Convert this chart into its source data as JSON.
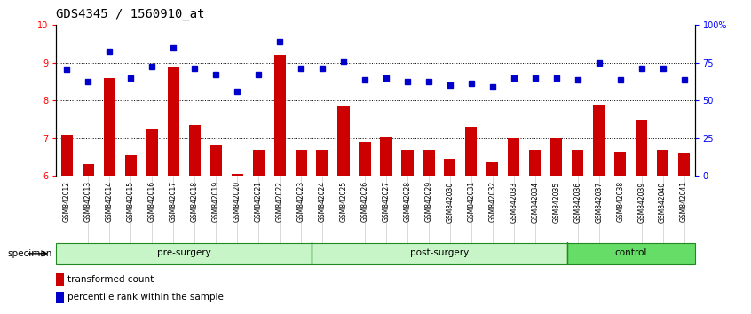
{
  "title": "GDS4345 / 1560910_at",
  "samples": [
    "GSM842012",
    "GSM842013",
    "GSM842014",
    "GSM842015",
    "GSM842016",
    "GSM842017",
    "GSM842018",
    "GSM842019",
    "GSM842020",
    "GSM842021",
    "GSM842022",
    "GSM842023",
    "GSM842024",
    "GSM842025",
    "GSM842026",
    "GSM842027",
    "GSM842028",
    "GSM842029",
    "GSM842030",
    "GSM842031",
    "GSM842032",
    "GSM842033",
    "GSM842034",
    "GSM842035",
    "GSM842036",
    "GSM842037",
    "GSM842038",
    "GSM842039",
    "GSM842040",
    "GSM842041"
  ],
  "bar_values": [
    7.1,
    6.3,
    8.6,
    6.55,
    7.25,
    8.9,
    7.35,
    6.8,
    6.05,
    6.7,
    9.2,
    6.7,
    6.7,
    7.85,
    6.9,
    7.05,
    6.7,
    6.7,
    6.45,
    7.3,
    6.35,
    7.0,
    6.7,
    7.0,
    6.7,
    7.9,
    6.65,
    7.5,
    6.7,
    6.6
  ],
  "percentile_values": [
    8.82,
    8.5,
    9.3,
    8.6,
    8.9,
    9.4,
    8.85,
    8.7,
    8.25,
    8.7,
    9.55,
    8.85,
    8.85,
    9.05,
    8.55,
    8.6,
    8.5,
    8.5,
    8.4,
    8.45,
    8.35,
    8.6,
    8.6,
    8.6,
    8.55,
    9.0,
    8.55,
    8.85,
    8.85,
    8.55
  ],
  "groups": [
    {
      "label": "pre-surgery",
      "start": 0,
      "end": 12,
      "color": "#c8f5c8"
    },
    {
      "label": "post-surgery",
      "start": 12,
      "end": 24,
      "color": "#c8f5c8"
    },
    {
      "label": "control",
      "start": 24,
      "end": 30,
      "color": "#66dd66"
    }
  ],
  "bar_color": "#cc0000",
  "dot_color": "#0000cc",
  "ylim_left": [
    6,
    10
  ],
  "ylim_right": [
    0,
    100
  ],
  "yticks_left": [
    6,
    7,
    8,
    9,
    10
  ],
  "yticks_right": [
    0,
    25,
    50,
    75,
    100
  ],
  "ytick_labels_right": [
    "0",
    "25",
    "50",
    "75",
    "100%"
  ],
  "gridlines": [
    7.0,
    8.0,
    9.0
  ],
  "bar_width": 0.55,
  "title_fontsize": 10,
  "tick_fontsize": 7,
  "group_separators": [
    11.5,
    23.5
  ],
  "n_presurgery": 12,
  "n_postsurgery": 12,
  "n_control": 6
}
